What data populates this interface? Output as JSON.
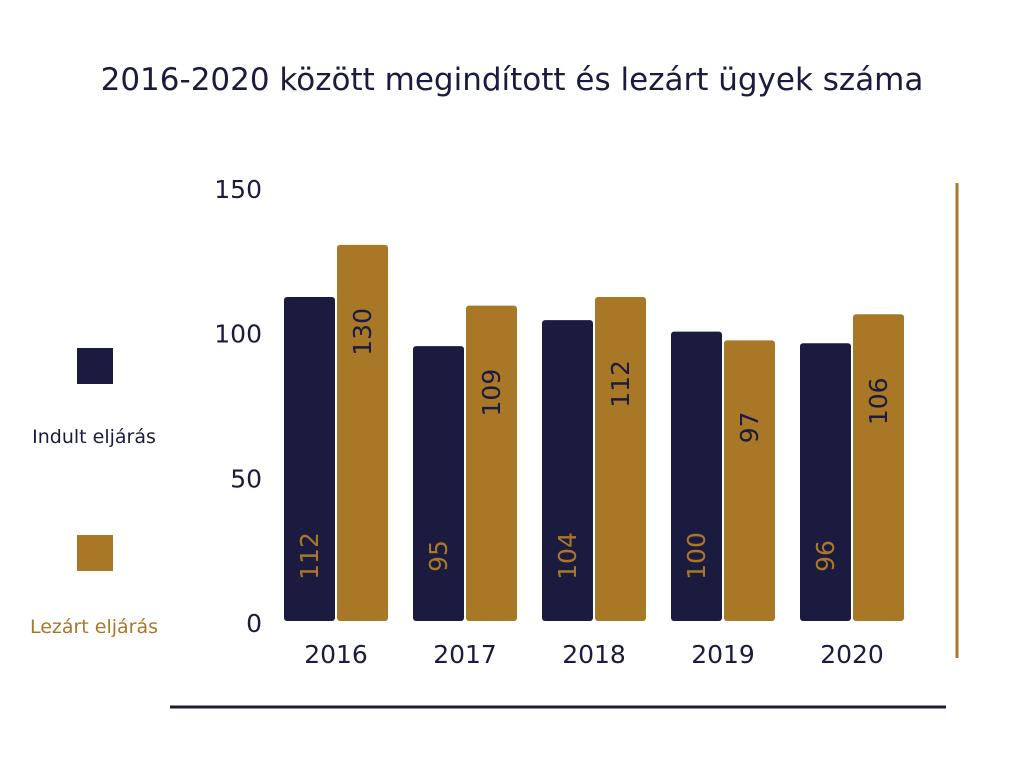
{
  "colors": {
    "indult": "#1b1b3f",
    "lezart": "#a97827",
    "text": "#1b1b3f",
    "rule": "#1b1b3f",
    "side_line": "#a97827"
  },
  "legend": {
    "items": [
      {
        "label": "Indult eljárás",
        "color": "#1b1b3f",
        "label_color": "#1b1b3f"
      },
      {
        "label": "Lezárt eljárás",
        "color": "#a97827",
        "label_color": "#a97827"
      }
    ]
  },
  "chart_data": {
    "type": "bar",
    "title": "2016-2020 között megindított és lezárt ügyek száma",
    "xlabel": "",
    "ylabel": "",
    "categories": [
      "2016",
      "2017",
      "2018",
      "2019",
      "2020"
    ],
    "series": [
      {
        "name": "Indult eljárás",
        "values": [
          112,
          95,
          104,
          100,
          96
        ],
        "color": "#1b1b3f",
        "label_color": "#a97827"
      },
      {
        "name": "Lezárt eljárás",
        "values": [
          130,
          109,
          112,
          97,
          106
        ],
        "color": "#a97827",
        "label_color": "#1b1b3f"
      }
    ],
    "ylim": [
      0,
      150
    ],
    "yticks": [
      0,
      50,
      100,
      150
    ],
    "grid": false,
    "legend_position": "left",
    "data_labels": "vertical"
  }
}
